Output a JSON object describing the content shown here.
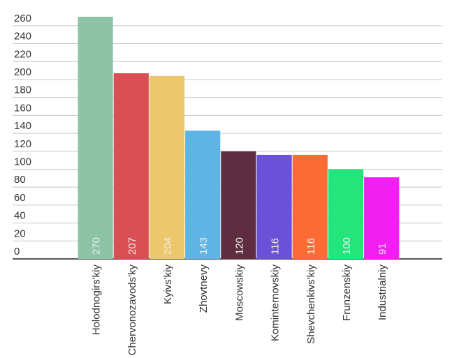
{
  "chart_data": {
    "type": "bar",
    "categories": [
      "Holodnogirs'kiy",
      "Chervonozavods'ky",
      "Kyivs'kiy",
      "Zhovtnevy",
      "Moscowskiy",
      "Kominternovskiy",
      "Shevchenkivs'kiy",
      "Frunzenskiy",
      "Industrialniy"
    ],
    "values": [
      270,
      207,
      204,
      143,
      120,
      116,
      116,
      100,
      91
    ],
    "colors": [
      "#8dc3a7",
      "#d94f54",
      "#edc76b",
      "#5db4e5",
      "#5e2d40",
      "#6b51d8",
      "#fd6b35",
      "#22e57b",
      "#f21ef2"
    ],
    "ylim": [
      0,
      270
    ],
    "yticks": [
      0,
      20,
      40,
      60,
      80,
      100,
      120,
      140,
      160,
      180,
      200,
      220,
      240,
      260
    ],
    "grid": true
  }
}
